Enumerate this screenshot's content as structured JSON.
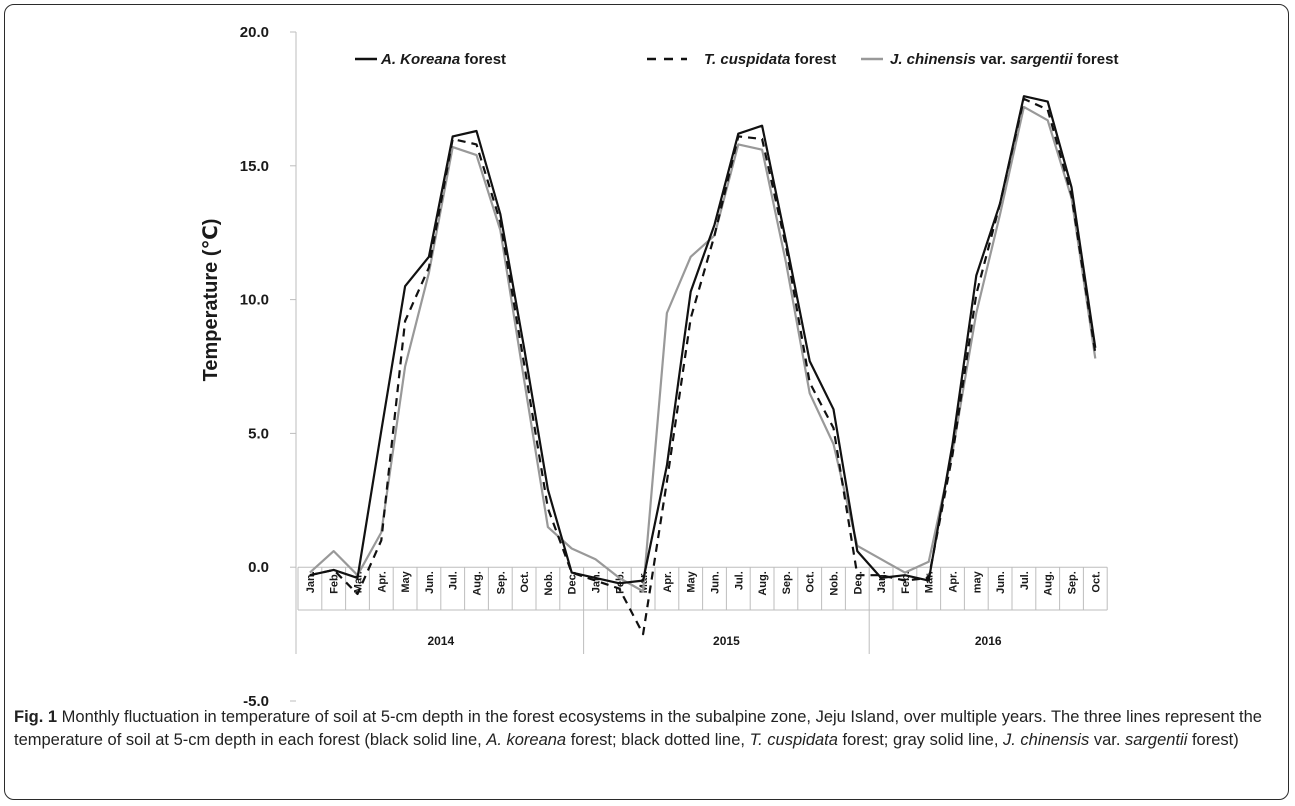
{
  "chart_data": {
    "type": "line",
    "ylabel": "Temperature (℃)",
    "xlabel": "",
    "ylim": [
      -5.0,
      20.0
    ],
    "yticks": [
      "20.0",
      "15.0",
      "10.0",
      "5.0",
      "0.0",
      "-5.0"
    ],
    "categories": [
      "Jan.",
      "Feb.",
      "Mar.",
      "Apr.",
      "May",
      "Jun.",
      "Jul.",
      "Aug.",
      "Sep.",
      "Oct.",
      "Nob.",
      "Dec.",
      "Jan.",
      "Feb.",
      "Mar.",
      "Apr.",
      "May",
      "Jun.",
      "Jul.",
      "Aug.",
      "Sep.",
      "Oct.",
      "Nob.",
      "Dec.",
      "Jan.",
      "Feb.",
      "Mar.",
      "Apr.",
      "may",
      "Jun.",
      "Jul.",
      "Aug.",
      "Sep.",
      "Oct."
    ],
    "groups": [
      {
        "label": "2014",
        "start": 0,
        "count": 12
      },
      {
        "label": "2015",
        "start": 12,
        "count": 12
      },
      {
        "label": "2016",
        "start": 24,
        "count": 10
      }
    ],
    "legend_position": "top",
    "grid": false,
    "series": [
      {
        "name_parts": [
          {
            "text": "A. Koreana",
            "italic": true
          },
          {
            "text": " forest",
            "italic": false
          }
        ],
        "color": "#111111",
        "dash": "solid",
        "values": [
          -0.3,
          -0.1,
          -0.4,
          5.1,
          10.5,
          11.6,
          16.1,
          16.3,
          13.2,
          8.2,
          2.9,
          -0.2,
          -0.4,
          -0.6,
          -0.5,
          3.8,
          10.3,
          12.8,
          16.2,
          16.5,
          12.2,
          7.7,
          5.9,
          0.6,
          -0.4,
          -0.3,
          -0.5,
          4.6,
          10.9,
          13.6,
          17.6,
          17.4,
          14.2,
          8.2
        ]
      },
      {
        "name_parts": [
          {
            "text": "T. cuspidata",
            "italic": true
          },
          {
            "text": " forest",
            "italic": false
          }
        ],
        "color": "#111111",
        "dash": "dashed",
        "values": [
          -0.3,
          -0.1,
          -1.0,
          1.0,
          9.2,
          11.2,
          16.0,
          15.8,
          12.9,
          7.6,
          2.2,
          -0.2,
          -0.5,
          -0.8,
          -2.5,
          3.2,
          9.3,
          12.4,
          16.1,
          16.0,
          12.0,
          6.9,
          5.2,
          -0.3,
          -0.3,
          -0.5,
          -0.4,
          4.2,
          10.2,
          13.6,
          17.5,
          17.1,
          13.9,
          8.0
        ]
      },
      {
        "name_parts": [
          {
            "text": "J. chinensis",
            "italic": true
          },
          {
            "text": " var. ",
            "italic": false
          },
          {
            "text": "sargentii",
            "italic": true
          },
          {
            "text": " forest",
            "italic": false
          }
        ],
        "color": "#999999",
        "dash": "solid",
        "values": [
          -0.2,
          0.6,
          -0.3,
          1.3,
          7.5,
          11.0,
          15.7,
          15.4,
          12.6,
          7.0,
          1.5,
          0.7,
          0.3,
          -0.4,
          -0.9,
          9.5,
          11.6,
          12.4,
          15.8,
          15.6,
          11.4,
          6.5,
          4.6,
          0.8,
          0.3,
          -0.2,
          0.2,
          4.3,
          9.5,
          13.2,
          17.2,
          16.7,
          13.8,
          7.8
        ]
      }
    ]
  },
  "caption": {
    "fig_label": "Fig. 1",
    "parts": [
      {
        "text": " Monthly fluctuation in temperature of soil at 5-cm depth in the forest ecosystems in the subalpine zone, Jeju Island, over multiple years. The three lines represent the temperature of soil at 5-cm depth in each forest (black solid line, ",
        "italic": false
      },
      {
        "text": "A. koreana",
        "italic": true
      },
      {
        "text": " forest; black dotted line, ",
        "italic": false
      },
      {
        "text": "T. cuspidata",
        "italic": true
      },
      {
        "text": " forest; gray solid line, ",
        "italic": false
      },
      {
        "text": "J. chinensis",
        "italic": true
      },
      {
        "text": " var. ",
        "italic": false
      },
      {
        "text": "sargentii",
        "italic": true
      },
      {
        "text": " forest)",
        "italic": false
      }
    ]
  }
}
